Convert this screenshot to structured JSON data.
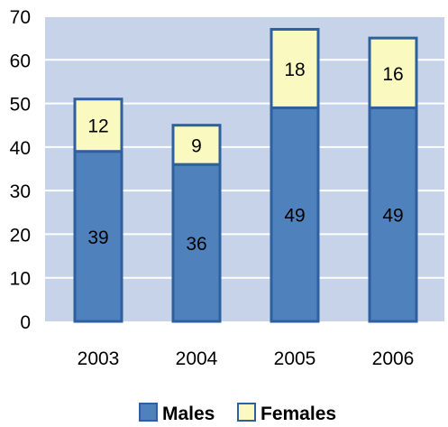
{
  "chart_data": {
    "type": "bar",
    "stacked": true,
    "categories": [
      "2003",
      "2004",
      "2005",
      "2006"
    ],
    "series": [
      {
        "name": "Males",
        "values": [
          39,
          36,
          49,
          49
        ],
        "color": "#4f81bd"
      },
      {
        "name": "Females",
        "values": [
          12,
          9,
          18,
          16
        ],
        "color": "#fafac0"
      }
    ],
    "ylim": [
      0,
      70
    ],
    "yticks": [
      0,
      10,
      20,
      30,
      40,
      50,
      60,
      70
    ],
    "grid": true,
    "legend_position": "bottom",
    "plot_background": "#c6d3e8",
    "bar_outline": "#2e5f9e"
  }
}
